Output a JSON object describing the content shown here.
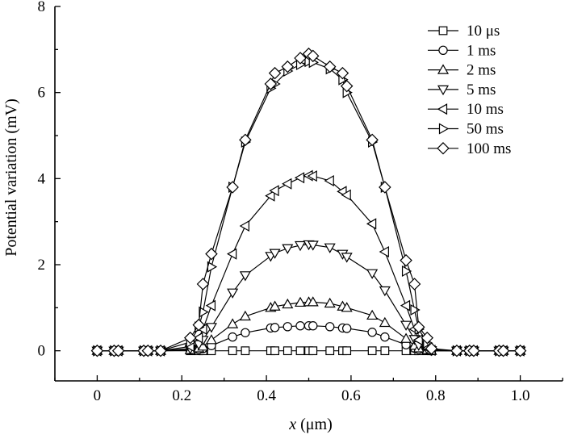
{
  "chart_data": {
    "type": "line",
    "title": "",
    "xlabel_italic": "x",
    "xlabel": " (μm)",
    "ylabel": "Potential variation (mV)",
    "xlim": [
      -0.1,
      1.1
    ],
    "ylim": [
      -0.7,
      8
    ],
    "xticks": [
      "0",
      "0.2",
      "0.4",
      "0.6",
      "0.8",
      "1.0"
    ],
    "yticks": [
      "0",
      "2",
      "4",
      "6",
      "8"
    ],
    "legend_position": "top-right",
    "grid": false,
    "series": [
      {
        "name": "10 μs",
        "marker": "square",
        "x": [
          0,
          0.04,
          0.05,
          0.11,
          0.12,
          0.15,
          0.22,
          0.24,
          0.25,
          0.27,
          0.32,
          0.35,
          0.41,
          0.42,
          0.45,
          0.48,
          0.5,
          0.51,
          0.55,
          0.58,
          0.59,
          0.65,
          0.68,
          0.73,
          0.75,
          0.76,
          0.78,
          0.79,
          0.85,
          0.88,
          0.89,
          0.95,
          0.96,
          1.0
        ],
        "y": [
          0,
          0,
          0,
          0,
          0,
          0,
          0,
          0,
          0,
          0,
          0,
          0,
          0,
          0,
          0,
          0,
          0,
          0,
          0,
          0,
          0,
          0,
          0,
          0,
          0,
          0,
          0,
          0,
          0,
          0,
          0,
          0,
          0,
          0
        ]
      },
      {
        "name": "1 ms",
        "marker": "circle",
        "x": [
          0,
          0.04,
          0.05,
          0.11,
          0.12,
          0.15,
          0.22,
          0.24,
          0.25,
          0.27,
          0.32,
          0.35,
          0.41,
          0.42,
          0.45,
          0.48,
          0.5,
          0.51,
          0.55,
          0.58,
          0.59,
          0.65,
          0.68,
          0.73,
          0.75,
          0.76,
          0.78,
          0.79,
          0.85,
          0.88,
          0.89,
          0.95,
          0.96,
          1.0
        ],
        "y": [
          0,
          0,
          0,
          0,
          0,
          0,
          0.01,
          0.03,
          0.05,
          0.12,
          0.32,
          0.42,
          0.53,
          0.54,
          0.56,
          0.58,
          0.58,
          0.58,
          0.56,
          0.53,
          0.52,
          0.43,
          0.32,
          0.14,
          0.06,
          0.03,
          0.01,
          0,
          0,
          0,
          0,
          0,
          0,
          0
        ]
      },
      {
        "name": "2 ms",
        "marker": "triangle-up",
        "x": [
          0,
          0.04,
          0.05,
          0.11,
          0.12,
          0.15,
          0.22,
          0.24,
          0.25,
          0.27,
          0.32,
          0.35,
          0.41,
          0.42,
          0.45,
          0.48,
          0.5,
          0.51,
          0.55,
          0.58,
          0.59,
          0.65,
          0.68,
          0.73,
          0.75,
          0.76,
          0.78,
          0.79,
          0.85,
          0.88,
          0.89,
          0.95,
          0.96,
          1.0
        ],
        "y": [
          0,
          0,
          0,
          0,
          0,
          0,
          0.02,
          0.06,
          0.1,
          0.25,
          0.62,
          0.8,
          1.0,
          1.03,
          1.08,
          1.12,
          1.13,
          1.13,
          1.1,
          1.03,
          1.0,
          0.82,
          0.65,
          0.28,
          0.12,
          0.06,
          0.02,
          0,
          0,
          0,
          0,
          0,
          0,
          0
        ]
      },
      {
        "name": "5 ms",
        "marker": "triangle-down",
        "x": [
          0,
          0.04,
          0.05,
          0.11,
          0.12,
          0.15,
          0.22,
          0.24,
          0.25,
          0.27,
          0.32,
          0.35,
          0.41,
          0.42,
          0.45,
          0.48,
          0.5,
          0.51,
          0.55,
          0.58,
          0.59,
          0.65,
          0.68,
          0.73,
          0.75,
          0.76,
          0.78,
          0.79,
          0.85,
          0.88,
          0.89,
          0.95,
          0.96,
          1.0
        ],
        "y": [
          0,
          0,
          0,
          0,
          0,
          0,
          0.05,
          0.15,
          0.25,
          0.55,
          1.35,
          1.75,
          2.2,
          2.27,
          2.38,
          2.45,
          2.47,
          2.46,
          2.4,
          2.25,
          2.18,
          1.8,
          1.4,
          0.6,
          0.27,
          0.13,
          0.04,
          0.01,
          0,
          0,
          0,
          0,
          0,
          0
        ]
      },
      {
        "name": "10 ms",
        "marker": "triangle-left",
        "x": [
          0,
          0.04,
          0.05,
          0.11,
          0.12,
          0.15,
          0.22,
          0.24,
          0.25,
          0.27,
          0.32,
          0.35,
          0.41,
          0.42,
          0.45,
          0.48,
          0.5,
          0.51,
          0.55,
          0.58,
          0.59,
          0.65,
          0.68,
          0.73,
          0.75,
          0.76,
          0.78,
          0.79,
          0.85,
          0.88,
          0.89,
          0.95,
          0.96,
          1.0
        ],
        "y": [
          0,
          0,
          0,
          0,
          0,
          0,
          0.1,
          0.3,
          0.5,
          1.05,
          2.25,
          2.9,
          3.6,
          3.72,
          3.88,
          4.02,
          4.07,
          4.06,
          3.95,
          3.7,
          3.62,
          2.95,
          2.3,
          1.05,
          0.5,
          0.25,
          0.07,
          0.01,
          0,
          0,
          0,
          0,
          0,
          0
        ]
      },
      {
        "name": "50 ms",
        "marker": "triangle-right",
        "x": [
          0,
          0.04,
          0.05,
          0.11,
          0.12,
          0.15,
          0.22,
          0.24,
          0.25,
          0.27,
          0.32,
          0.35,
          0.41,
          0.42,
          0.45,
          0.48,
          0.5,
          0.51,
          0.55,
          0.58,
          0.59,
          0.65,
          0.68,
          0.73,
          0.75,
          0.76,
          0.78,
          0.79,
          0.85,
          0.88,
          0.89,
          0.95,
          0.96,
          1.0
        ],
        "y": [
          0,
          0,
          0,
          0,
          0,
          0,
          0.2,
          0.55,
          0.9,
          1.95,
          3.8,
          4.85,
          6.1,
          6.2,
          6.5,
          6.65,
          6.72,
          6.7,
          6.55,
          6.3,
          6.0,
          4.85,
          3.8,
          1.85,
          0.95,
          0.5,
          0.18,
          0.03,
          0,
          0,
          0,
          0,
          0,
          0
        ]
      },
      {
        "name": "100 ms",
        "marker": "diamond",
        "x": [
          0,
          0.04,
          0.05,
          0.11,
          0.12,
          0.15,
          0.22,
          0.24,
          0.25,
          0.27,
          0.32,
          0.35,
          0.41,
          0.42,
          0.45,
          0.48,
          0.5,
          0.51,
          0.55,
          0.58,
          0.59,
          0.65,
          0.68,
          0.73,
          0.75,
          0.76,
          0.78,
          0.79,
          0.85,
          0.88,
          0.89,
          0.95,
          0.96,
          1.0
        ],
        "y": [
          0,
          0,
          0,
          0,
          0,
          0,
          0.3,
          0.6,
          1.55,
          2.25,
          3.8,
          4.9,
          6.2,
          6.45,
          6.6,
          6.8,
          6.9,
          6.85,
          6.6,
          6.45,
          6.15,
          4.9,
          3.8,
          2.1,
          1.55,
          0.55,
          0.3,
          0.05,
          0,
          0,
          0,
          0,
          0,
          0
        ]
      }
    ]
  }
}
